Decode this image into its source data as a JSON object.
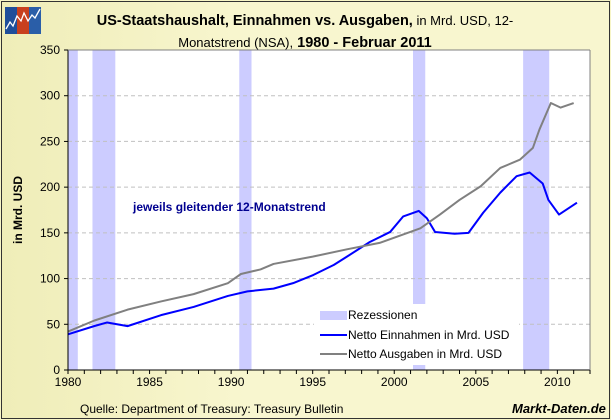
{
  "title": {
    "bold1": "US-Staatshaushalt, Einnahmen vs. Ausgaben,",
    "normal": " in Mrd. USD, 12-Monatstrend (NSA),",
    "bold2": " 1980 - Februar 2011"
  },
  "source": "Quelle: Department of Treasury: Treasury Bulletin",
  "brand": "Markt-Daten.de",
  "logo_icon": "chart-logo-icon",
  "chart_data": {
    "type": "line",
    "title": "US-Staatshaushalt, Einnahmen vs. Ausgaben, in Mrd. USD, 12-Monatstrend (NSA), 1980 - Februar 2011",
    "xlabel": "",
    "ylabel": "in Mrd. USD",
    "xlim": [
      1980,
      2012
    ],
    "ylim": [
      0,
      350
    ],
    "xticks": [
      1980,
      1985,
      1990,
      1995,
      2000,
      2005,
      2010
    ],
    "yticks": [
      0,
      50,
      100,
      150,
      200,
      250,
      300,
      350
    ],
    "grid": "horizontal dashed",
    "legend_placement": "bottom-right",
    "annotation": "jeweils gleitender 12-Monatstrend",
    "recessions": {
      "name": "Rezessionen",
      "color": "#ccccff",
      "periods": [
        [
          1980.0,
          1980.6
        ],
        [
          1981.5,
          1982.9
        ],
        [
          1990.5,
          1991.25
        ],
        [
          2001.15,
          2001.9
        ],
        [
          2007.9,
          2009.5
        ]
      ]
    },
    "series": [
      {
        "name": "Netto Einnahmen in Mrd. USD",
        "color": "#0000ff",
        "points": [
          [
            1980,
            39
          ],
          [
            1981.6,
            48
          ],
          [
            1982.4,
            52
          ],
          [
            1983.65,
            48
          ],
          [
            1985.7,
            60
          ],
          [
            1987.7,
            69
          ],
          [
            1989.8,
            81
          ],
          [
            1991,
            86
          ],
          [
            1992.6,
            89
          ],
          [
            1993.8,
            95
          ],
          [
            1995.05,
            104
          ],
          [
            1996.3,
            115
          ],
          [
            1997.1,
            124
          ],
          [
            1998.5,
            140
          ],
          [
            1999.75,
            151
          ],
          [
            2000.55,
            168
          ],
          [
            2001.5,
            174
          ],
          [
            2002,
            166
          ],
          [
            2002.5,
            151
          ],
          [
            2003.7,
            149
          ],
          [
            2004.55,
            150
          ],
          [
            2005.45,
            172
          ],
          [
            2006.5,
            194
          ],
          [
            2007.5,
            212
          ],
          [
            2008.3,
            216
          ],
          [
            2009.1,
            204
          ],
          [
            2009.45,
            186
          ],
          [
            2010.1,
            170
          ],
          [
            2011.2,
            183
          ]
        ]
      },
      {
        "name": "Netto Ausgaben in Mrd. USD",
        "color": "#808080",
        "points": [
          [
            1980,
            42
          ],
          [
            1981.6,
            54
          ],
          [
            1983.65,
            66
          ],
          [
            1985.7,
            75
          ],
          [
            1987.7,
            83
          ],
          [
            1989.8,
            95
          ],
          [
            1990.6,
            105
          ],
          [
            1991.8,
            110
          ],
          [
            1992.6,
            116
          ],
          [
            1995,
            124
          ],
          [
            1997.1,
            132
          ],
          [
            1999.1,
            139
          ],
          [
            2001.6,
            155
          ],
          [
            2002.8,
            170
          ],
          [
            2004.0,
            186
          ],
          [
            2005.3,
            201
          ],
          [
            2006.5,
            221
          ],
          [
            2007.7,
            230
          ],
          [
            2008.5,
            243
          ],
          [
            2008.9,
            263
          ],
          [
            2009.6,
            292
          ],
          [
            2010.2,
            287
          ],
          [
            2011.0,
            292
          ]
        ]
      }
    ]
  }
}
